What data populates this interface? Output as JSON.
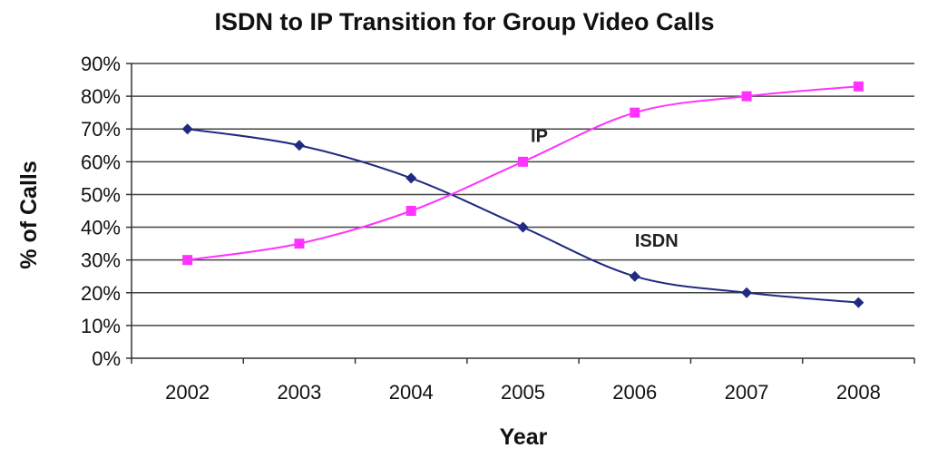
{
  "chart_data": {
    "type": "line",
    "title": "ISDN to IP Transition for Group Video Calls",
    "xlabel": "Year",
    "ylabel": "% of Calls",
    "categories": [
      "2002",
      "2003",
      "2004",
      "2005",
      "2006",
      "2007",
      "2008"
    ],
    "ylim": [
      0,
      90
    ],
    "yticks": [
      "0%",
      "10%",
      "20%",
      "30%",
      "40%",
      "50%",
      "60%",
      "70%",
      "80%",
      "90%"
    ],
    "grid": true,
    "legend": "none",
    "series": [
      {
        "name": "ISDN",
        "color": "#1f2a80",
        "marker": "diamond",
        "values": [
          70,
          65,
          55,
          40,
          25,
          20,
          17
        ]
      },
      {
        "name": "IP",
        "color": "#ff33ff",
        "marker": "square",
        "values": [
          30,
          35,
          45,
          60,
          75,
          80,
          83
        ]
      }
    ]
  }
}
